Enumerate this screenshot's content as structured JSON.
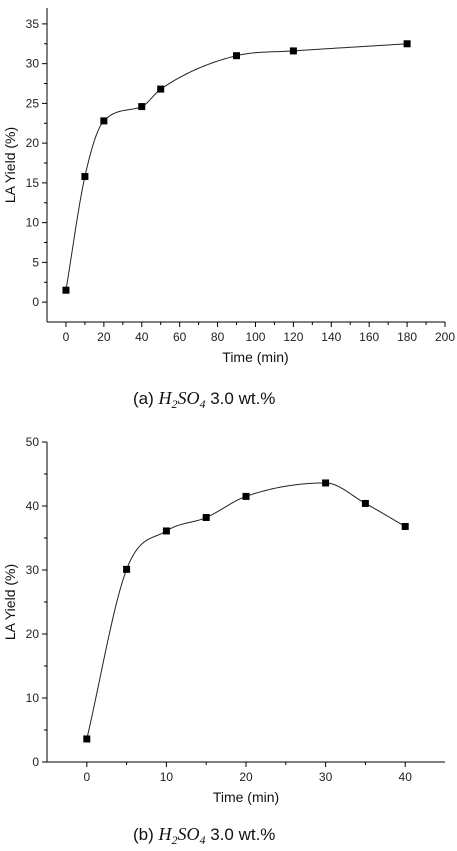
{
  "chart_data": [
    {
      "type": "scatter",
      "panel_label": "(a)",
      "caption_formula": "H",
      "caption_sub1": "2",
      "caption_formula2": "SO",
      "caption_sub2": "4",
      "caption_text": "3.0 wt.%",
      "xlabel": "Time (min)",
      "ylabel": "LA Yield (%)",
      "xlim": [
        -10,
        200
      ],
      "ylim": [
        -2.5,
        37
      ],
      "xticks": [
        0,
        20,
        40,
        60,
        80,
        100,
        120,
        140,
        160,
        180,
        200
      ],
      "yticks": [
        0,
        5,
        10,
        15,
        20,
        25,
        30,
        35
      ],
      "x": [
        0,
        10,
        20,
        40,
        50,
        90,
        120,
        180
      ],
      "y": [
        1.5,
        15.8,
        22.8,
        24.6,
        26.8,
        31.0,
        31.6,
        32.5
      ],
      "fit_curve": true,
      "marker": "square",
      "color": "#000000"
    },
    {
      "type": "scatter",
      "panel_label": "(b)",
      "caption_formula": "H",
      "caption_sub1": "2",
      "caption_formula2": "SO",
      "caption_sub2": "4",
      "caption_text": "3.0 wt.%",
      "xlabel": "Time (min)",
      "ylabel": "LA Yield (%)",
      "xlim": [
        -5,
        45
      ],
      "ylim": [
        0,
        50
      ],
      "xticks": [
        0,
        10,
        20,
        30,
        40
      ],
      "yticks": [
        0,
        10,
        20,
        30,
        40,
        50
      ],
      "x": [
        0,
        5,
        10,
        15,
        20,
        30,
        35,
        40
      ],
      "y": [
        3.6,
        30.1,
        36.1,
        38.2,
        41.5,
        43.6,
        40.4,
        36.8
      ],
      "fit_curve": true,
      "marker": "square",
      "color": "#000000"
    }
  ]
}
